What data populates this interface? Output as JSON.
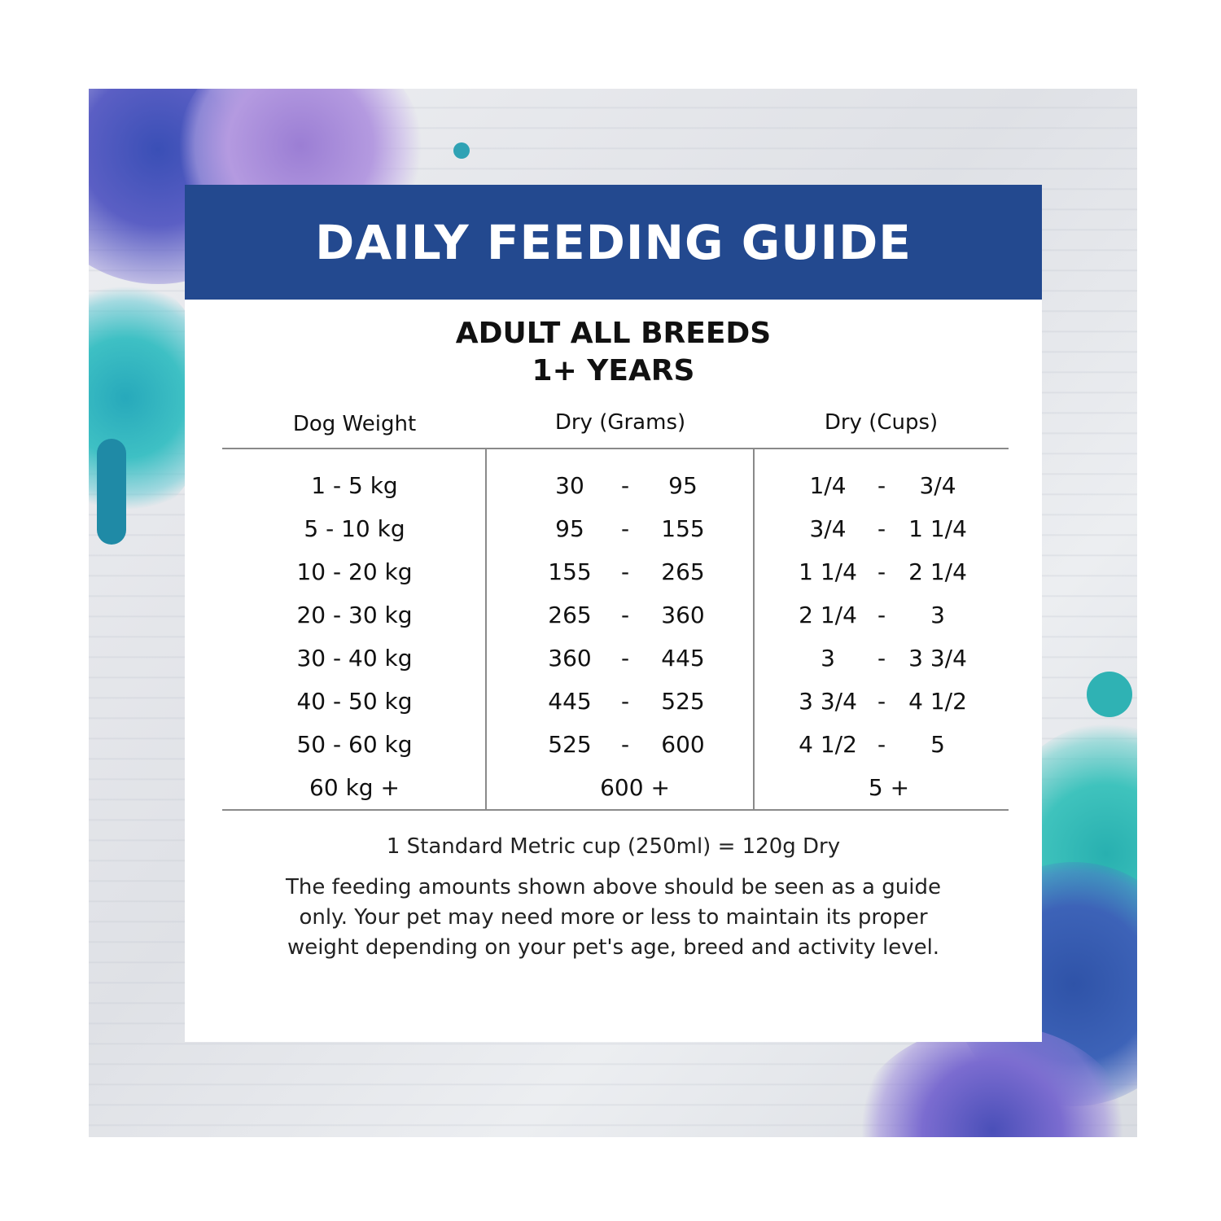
{
  "guide": {
    "title": "DAILY FEEDING GUIDE",
    "subtitle_line1": "ADULT ALL BREEDS",
    "subtitle_line2": "1+ YEARS",
    "headers": [
      "Dog Weight",
      "Dry (Grams)",
      "Dry (Cups)"
    ],
    "rows": [
      {
        "weight": "1 - 5 kg",
        "grams_min": "30",
        "grams_max": "95",
        "cups_min": "1/4",
        "cups_max": "3/4"
      },
      {
        "weight": "5 - 10 kg",
        "grams_min": "95",
        "grams_max": "155",
        "cups_min": "3/4",
        "cups_max": "1 1/4"
      },
      {
        "weight": "10 - 20 kg",
        "grams_min": "155",
        "grams_max": "265",
        "cups_min": "1 1/4",
        "cups_max": "2 1/4"
      },
      {
        "weight": "20 - 30 kg",
        "grams_min": "265",
        "grams_max": "360",
        "cups_min": "2 1/4",
        "cups_max": "3"
      },
      {
        "weight": "30 - 40 kg",
        "grams_min": "360",
        "grams_max": "445",
        "cups_min": "3",
        "cups_max": "3 3/4"
      },
      {
        "weight": "40 - 50 kg",
        "grams_min": "445",
        "grams_max": "525",
        "cups_min": "3 3/4",
        "cups_max": "4 1/2"
      },
      {
        "weight": "50 - 60 kg",
        "grams_min": "525",
        "grams_max": "600",
        "cups_min": "4 1/2",
        "cups_max": "5"
      }
    ],
    "last_row": {
      "weight": "60 kg +",
      "grams": "600 +",
      "cups": "5 +"
    },
    "separator": "-",
    "cup_note": "1 Standard Metric cup (250ml) = 120g Dry",
    "disclaimer_lines": [
      "The feeding amounts shown above should be seen as a guide",
      "only. Your pet may need more or less to maintain its proper",
      "weight depending on your pet's age, breed and activity level."
    ]
  },
  "colors": {
    "banner": "#23498f",
    "splash_blue": "#3b4fb8",
    "splash_purple": "#8a6cc8",
    "splash_teal": "#2fb7b5"
  }
}
